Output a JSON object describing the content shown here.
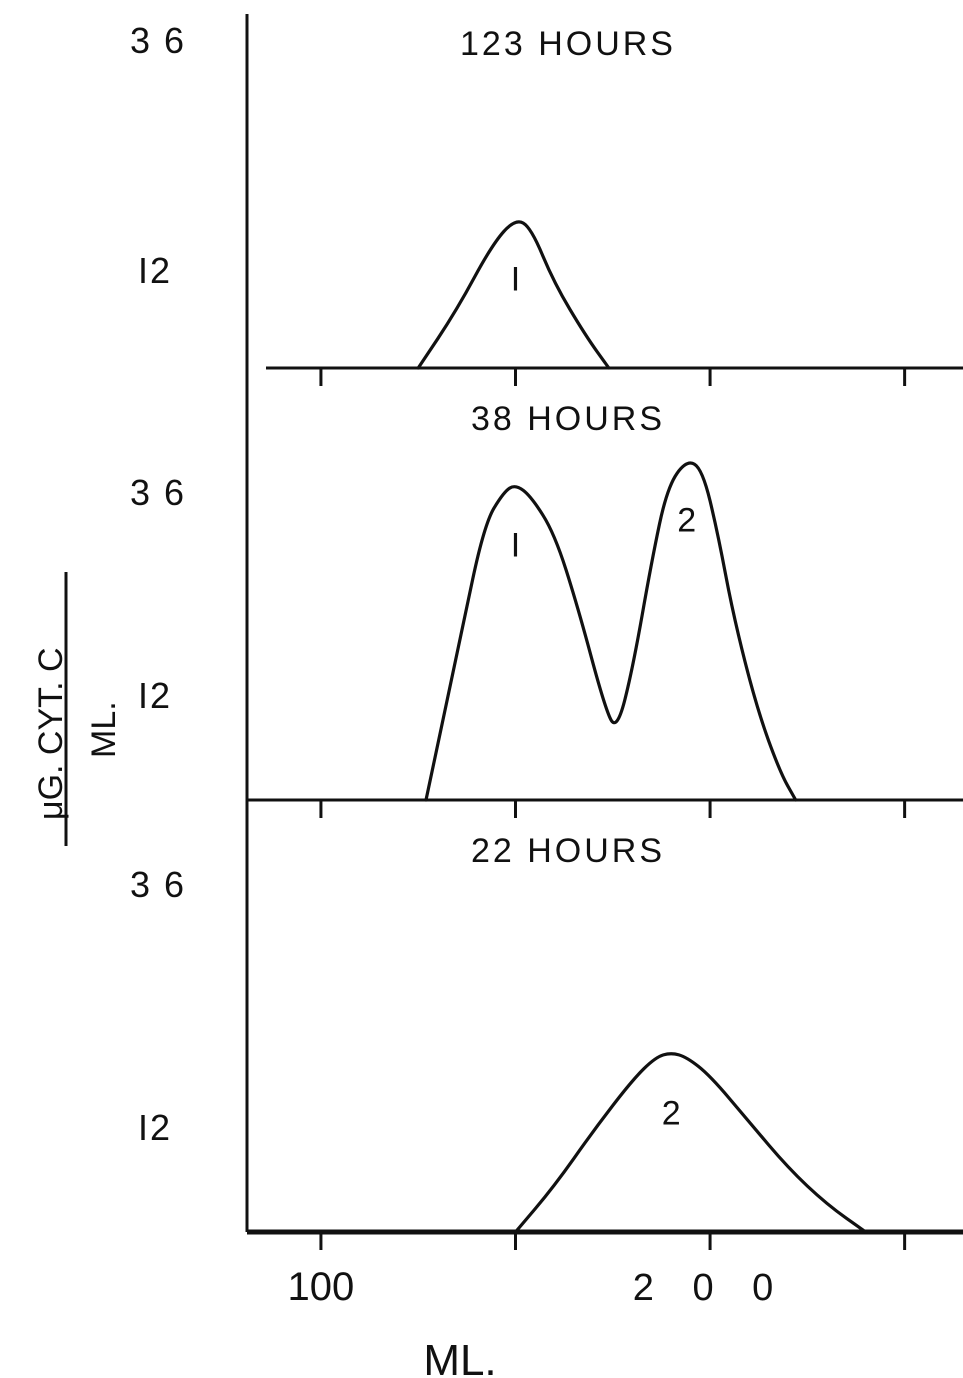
{
  "chart_data": {
    "type": "line",
    "x_axis": {
      "label": "ML.",
      "tick_labels": [
        "100",
        "200"
      ],
      "tick_values": [
        100,
        150,
        200,
        250
      ],
      "range": [
        81,
        265
      ]
    },
    "y_axis": {
      "label_numerator": "μG. CYT. C",
      "label_denominator": "ML.",
      "tick_labels": [
        "36",
        "12"
      ]
    },
    "panels": [
      {
        "title": "123 HOURS",
        "ytick_labels": [
          "3 6",
          "I2"
        ],
        "peaks": [
          {
            "label": "I",
            "x": 150
          }
        ],
        "series": [
          {
            "x": [
              125,
              135,
              144,
              150,
              154,
              160,
              168,
              174
            ],
            "y": [
              0,
              4.5,
              9.5,
              11.5,
              10.8,
              6.5,
              2.5,
              0
            ]
          }
        ]
      },
      {
        "title": "38 HOURS",
        "ytick_labels": [
          "3 6",
          "I2"
        ],
        "peaks": [
          {
            "label": "I",
            "x": 150
          },
          {
            "label": "2",
            "x": 194
          }
        ],
        "series": [
          {
            "x": [
              127,
              131,
              136,
              142,
              147,
              150,
              154,
              160,
              166,
              173,
              176,
              180,
              185,
              189,
              194,
              198,
              202,
              206,
              212,
              218,
              222
            ],
            "y": [
              0,
              8,
              18,
              30,
              33.5,
              34.3,
              33,
              29,
              21,
              10,
              7.5,
              14,
              26,
              34,
              37,
              36,
              29,
              20,
              10,
              3,
              0
            ]
          }
        ]
      },
      {
        "title": "22 HOURS",
        "ytick_labels": [
          "3 6",
          "I2"
        ],
        "peaks": [
          {
            "label": "2",
            "x": 190
          }
        ],
        "series": [
          {
            "x": [
              150,
              160,
              170,
              180,
              186,
              190,
              194,
              200,
              210,
              220,
              230,
              240
            ],
            "y": [
              0,
              5,
              11,
              16.5,
              19,
              19.5,
              19,
              17,
              12,
              7,
              3,
              0
            ]
          }
        ]
      }
    ]
  }
}
